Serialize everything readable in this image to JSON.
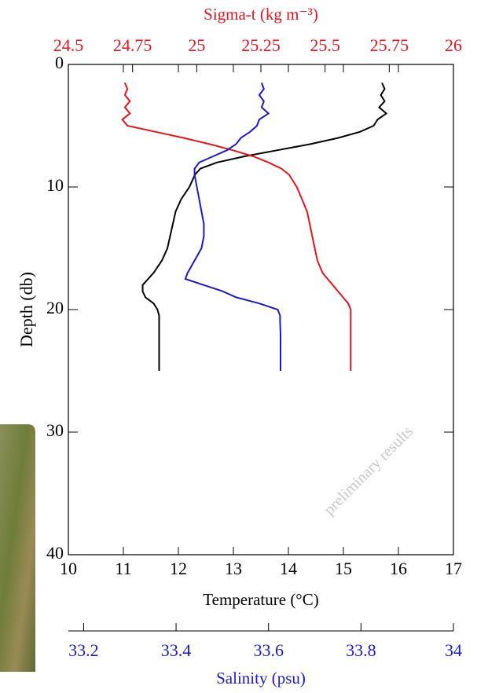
{
  "chart_data": {
    "type": "line",
    "ylabel": "Depth (db)",
    "ylim": [
      0,
      40
    ],
    "yticks": [
      0,
      10,
      20,
      30,
      40
    ],
    "inverted_y": true,
    "y": [
      1.5,
      2,
      2.5,
      3,
      3.5,
      4,
      4.5,
      5,
      5.5,
      6,
      6.5,
      7,
      7.5,
      8,
      8.5,
      9,
      10,
      11,
      12,
      13,
      14,
      15,
      16,
      17,
      17.5,
      18,
      18.5,
      19,
      19.5,
      20,
      20.5,
      21,
      22,
      23,
      24,
      25
    ],
    "axes": [
      {
        "label": "Temperature (°C)",
        "position": "bottom",
        "color": "#000000",
        "xlim": [
          10,
          17
        ],
        "xticks": [
          10,
          11,
          12,
          13,
          14,
          15,
          16,
          17
        ]
      },
      {
        "label": "Sigma-t (kg m⁻³)",
        "position": "top",
        "color": "#e8141b",
        "xlim": [
          24.5,
          26
        ],
        "xticks": [
          24.5,
          24.75,
          25,
          25.25,
          25.5,
          25.75,
          26
        ]
      },
      {
        "label": "Salinity (psu)",
        "position": "separate",
        "color": "#1a1acc",
        "xlim": [
          33.167,
          34
        ],
        "xticks": [
          33.2,
          33.4,
          33.6,
          33.8,
          34
        ]
      }
    ],
    "series": [
      {
        "axis": 0,
        "color": "#000000",
        "values": [
          15.7,
          15.75,
          15.68,
          15.75,
          15.65,
          15.78,
          15.62,
          15.55,
          15.3,
          14.9,
          14.4,
          13.8,
          13.2,
          12.7,
          12.4,
          12.3,
          12.2,
          12.05,
          11.95,
          11.9,
          11.85,
          11.8,
          11.7,
          11.55,
          11.45,
          11.35,
          11.35,
          11.4,
          11.55,
          11.62,
          11.65,
          11.65,
          11.65,
          11.65,
          11.65,
          11.65
        ]
      },
      {
        "axis": 1,
        "color": "#e8141b",
        "values": [
          24.72,
          24.73,
          24.72,
          24.74,
          24.72,
          24.74,
          24.71,
          24.73,
          24.84,
          24.95,
          25.05,
          25.14,
          25.22,
          25.28,
          25.33,
          25.36,
          25.39,
          25.41,
          25.43,
          25.44,
          25.45,
          25.46,
          25.47,
          25.49,
          25.51,
          25.53,
          25.55,
          25.57,
          25.59,
          25.6,
          25.6,
          25.6,
          25.6,
          25.6,
          25.6,
          25.6
        ]
      },
      {
        "axis": 2,
        "color": "#1a1acc",
        "values": [
          33.585,
          33.59,
          33.58,
          33.59,
          33.585,
          33.6,
          33.58,
          33.575,
          33.56,
          33.54,
          33.53,
          33.51,
          33.48,
          33.45,
          33.44,
          33.44,
          33.445,
          33.45,
          33.455,
          33.46,
          33.46,
          33.455,
          33.44,
          33.425,
          33.42,
          33.46,
          33.5,
          33.53,
          33.58,
          33.62,
          33.625,
          33.625,
          33.626,
          33.626,
          33.626,
          33.626
        ]
      }
    ],
    "watermark": "preliminary results"
  }
}
